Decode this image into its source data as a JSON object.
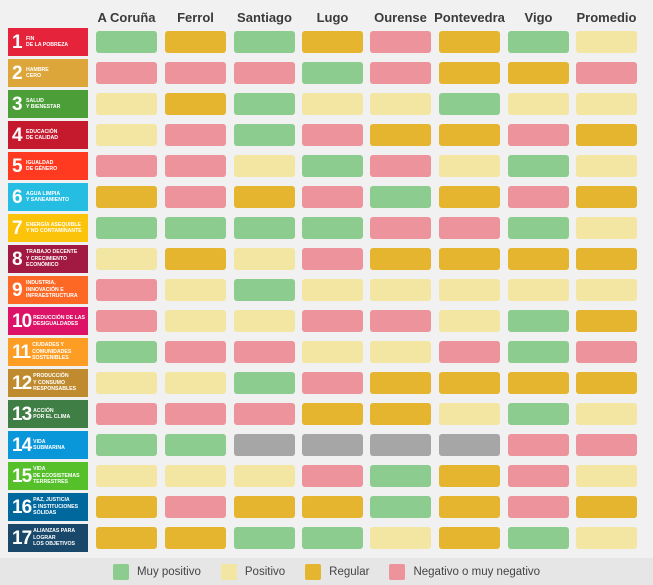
{
  "colors": {
    "Muy positivo": "#8dcc8f",
    "Positivo": "#f3e6a2",
    "Regular": "#e5b52f",
    "Negativo o muy negativo": "#ec939b",
    "Sin datos": "#a6a6a6"
  },
  "chart_data": {
    "type": "heatmap",
    "columns": [
      "A Coruña",
      "Ferrol",
      "Santiago",
      "Lugo",
      "Ourense",
      "Pontevedra",
      "Vigo",
      "Promedio"
    ],
    "rows": [
      {
        "num": "1",
        "label": "FIN\nDE LA POBREZA",
        "color": "#e5243b",
        "values": [
          "Muy positivo",
          "Regular",
          "Muy positivo",
          "Regular",
          "Negativo o muy negativo",
          "Regular",
          "Muy positivo",
          "Positivo"
        ]
      },
      {
        "num": "2",
        "label": "HAMBRE\nCERO",
        "color": "#dda63a",
        "values": [
          "Negativo o muy negativo",
          "Negativo o muy negativo",
          "Negativo o muy negativo",
          "Muy positivo",
          "Negativo o muy negativo",
          "Regular",
          "Regular",
          "Negativo o muy negativo"
        ]
      },
      {
        "num": "3",
        "label": "SALUD\nY BIENESTAR",
        "color": "#4c9f38",
        "values": [
          "Positivo",
          "Regular",
          "Muy positivo",
          "Positivo",
          "Positivo",
          "Muy positivo",
          "Positivo",
          "Positivo"
        ]
      },
      {
        "num": "4",
        "label": "EDUCACIÓN\nDE CALIDAD",
        "color": "#c5192d",
        "values": [
          "Positivo",
          "Negativo o muy negativo",
          "Muy positivo",
          "Negativo o muy negativo",
          "Regular",
          "Regular",
          "Negativo o muy negativo",
          "Regular"
        ]
      },
      {
        "num": "5",
        "label": "IGUALDAD\nDE GÉNERO",
        "color": "#ff3a21",
        "values": [
          "Negativo o muy negativo",
          "Negativo o muy negativo",
          "Positivo",
          "Muy positivo",
          "Negativo o muy negativo",
          "Positivo",
          "Muy positivo",
          "Positivo"
        ]
      },
      {
        "num": "6",
        "label": "AGUA LIMPIA\nY SANEAMIENTO",
        "color": "#26bde2",
        "values": [
          "Regular",
          "Negativo o muy negativo",
          "Regular",
          "Negativo o muy negativo",
          "Muy positivo",
          "Regular",
          "Negativo o muy negativo",
          "Regular"
        ]
      },
      {
        "num": "7",
        "label": "ENERGÍA ASEQUIBLE\nY NO CONTAMINANTE",
        "color": "#fcc30b",
        "values": [
          "Muy positivo",
          "Muy positivo",
          "Muy positivo",
          "Muy positivo",
          "Negativo o muy negativo",
          "Negativo o muy negativo",
          "Muy positivo",
          "Positivo"
        ]
      },
      {
        "num": "8",
        "label": "TRABAJO DECENTE\nY CRECIMIENTO\nECONÓMICO",
        "color": "#a21942",
        "values": [
          "Positivo",
          "Regular",
          "Positivo",
          "Negativo o muy negativo",
          "Regular",
          "Regular",
          "Regular",
          "Regular"
        ]
      },
      {
        "num": "9",
        "label": "INDUSTRIA,\nINNOVACIÓN E\nINFRAESTRUCTURA",
        "color": "#fd6925",
        "values": [
          "Negativo o muy negativo",
          "Positivo",
          "Muy positivo",
          "Positivo",
          "Positivo",
          "Positivo",
          "Positivo",
          "Positivo"
        ]
      },
      {
        "num": "10",
        "label": "REDUCCIÓN DE LAS\nDESIGUALDADES",
        "color": "#dd1367",
        "values": [
          "Negativo o muy negativo",
          "Positivo",
          "Positivo",
          "Negativo o muy negativo",
          "Negativo o muy negativo",
          "Positivo",
          "Muy positivo",
          "Regular"
        ]
      },
      {
        "num": "11",
        "label": "CIUDADES Y\nCOMUNIDADES\nSOSTENIBLES",
        "color": "#fd9d24",
        "values": [
          "Muy positivo",
          "Negativo o muy negativo",
          "Negativo o muy negativo",
          "Positivo",
          "Positivo",
          "Negativo o muy negativo",
          "Muy positivo",
          "Negativo o muy negativo"
        ]
      },
      {
        "num": "12",
        "label": "PRODUCCIÓN\nY CONSUMO\nRESPONSABLES",
        "color": "#bf8b2e",
        "values": [
          "Positivo",
          "Positivo",
          "Muy positivo",
          "Negativo o muy negativo",
          "Regular",
          "Regular",
          "Regular",
          "Regular"
        ]
      },
      {
        "num": "13",
        "label": "ACCIÓN\nPOR EL CLIMA",
        "color": "#3f7e44",
        "values": [
          "Negativo o muy negativo",
          "Negativo o muy negativo",
          "Negativo o muy negativo",
          "Regular",
          "Regular",
          "Positivo",
          "Muy positivo",
          "Positivo"
        ]
      },
      {
        "num": "14",
        "label": "VIDA\nSUBMARINA",
        "color": "#0a97d9",
        "values": [
          "Muy positivo",
          "Muy positivo",
          "Sin datos",
          "Sin datos",
          "Sin datos",
          "Sin datos",
          "Negativo o muy negativo",
          "Negativo o muy negativo"
        ]
      },
      {
        "num": "15",
        "label": "VIDA\nDE ECOSISTEMAS\nTERRESTRES",
        "color": "#56c02b",
        "values": [
          "Positivo",
          "Positivo",
          "Positivo",
          "Negativo o muy negativo",
          "Muy positivo",
          "Regular",
          "Negativo o muy negativo",
          "Positivo"
        ]
      },
      {
        "num": "16",
        "label": "PAZ, JUSTICIA\nE INSTITUCIONES\nSÓLIDAS",
        "color": "#00689d",
        "values": [
          "Regular",
          "Negativo o muy negativo",
          "Regular",
          "Regular",
          "Muy positivo",
          "Regular",
          "Negativo o muy negativo",
          "Regular"
        ]
      },
      {
        "num": "17",
        "label": "ALIANZAS PARA\nLOGRAR\nLOS OBJETIVOS",
        "color": "#19486a",
        "values": [
          "Regular",
          "Regular",
          "Muy positivo",
          "Muy positivo",
          "Positivo",
          "Regular",
          "Muy positivo",
          "Positivo"
        ]
      }
    ],
    "legend": [
      "Muy positivo",
      "Positivo",
      "Regular",
      "Negativo o muy negativo"
    ],
    "legend_placement": "bottom"
  }
}
